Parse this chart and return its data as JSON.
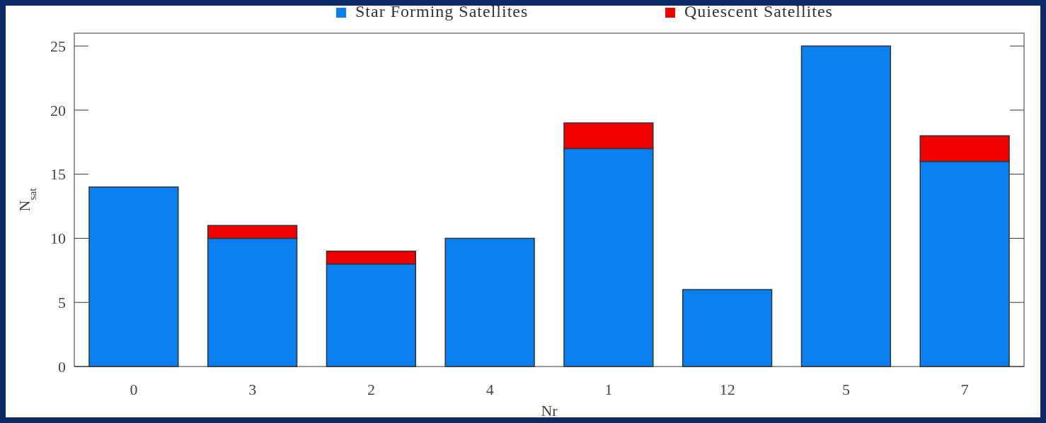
{
  "chart_data": {
    "type": "bar",
    "xlabel": "Nr",
    "ylabel": "N$_{sat}$",
    "categories": [
      "0",
      "3",
      "2",
      "4",
      "1",
      "12",
      "5",
      "7"
    ],
    "series": [
      {
        "name": "Star Forming Satellites",
        "color": "#0a80f0",
        "values": [
          14,
          10,
          8,
          10,
          17,
          6,
          25,
          16
        ]
      },
      {
        "name": "Quiescent Satellites",
        "color": "#f00000",
        "values": [
          0,
          1,
          1,
          0,
          2,
          0,
          0,
          2
        ]
      }
    ],
    "stacked": true,
    "ylim": [
      0,
      26
    ],
    "yticks": [
      0,
      5,
      10,
      15,
      20,
      25
    ],
    "legend": "top"
  }
}
